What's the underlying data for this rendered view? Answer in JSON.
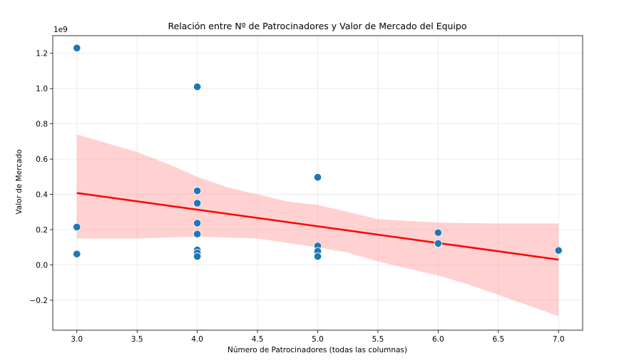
{
  "chart_data": {
    "type": "scatter",
    "title": "Relación entre Nº de Patrocinadores y Valor de Mercado del Equipo",
    "xlabel": "Número de Patrocinadores (todas las columnas)",
    "ylabel": "Valor de Mercado",
    "y_offset_label": "1e9",
    "xlim": [
      2.8,
      7.2
    ],
    "ylim": [
      -0.37,
      1.3
    ],
    "grid": true,
    "x_ticks": [
      3.0,
      3.5,
      4.0,
      4.5,
      5.0,
      5.5,
      6.0,
      6.5,
      7.0
    ],
    "x_tick_labels": [
      "3.0",
      "3.5",
      "4.0",
      "4.5",
      "5.0",
      "5.5",
      "6.0",
      "6.5",
      "7.0"
    ],
    "y_ticks": [
      -0.2,
      0.0,
      0.2,
      0.4,
      0.6,
      0.8,
      1.0,
      1.2
    ],
    "y_tick_labels": [
      "−0.2",
      "0.0",
      "0.2",
      "0.4",
      "0.6",
      "0.8",
      "1.0",
      "1.2"
    ],
    "series": [
      {
        "type": "scatter",
        "color": "#1f77b4",
        "points": [
          {
            "x": 3,
            "y": 1.23
          },
          {
            "x": 3,
            "y": 0.215
          },
          {
            "x": 3,
            "y": 0.062
          },
          {
            "x": 4,
            "y": 1.01
          },
          {
            "x": 4,
            "y": 0.42
          },
          {
            "x": 4,
            "y": 0.35
          },
          {
            "x": 4,
            "y": 0.237
          },
          {
            "x": 4,
            "y": 0.175
          },
          {
            "x": 4,
            "y": 0.085
          },
          {
            "x": 4,
            "y": 0.068
          },
          {
            "x": 4,
            "y": 0.048
          },
          {
            "x": 5,
            "y": 0.497
          },
          {
            "x": 5,
            "y": 0.108
          },
          {
            "x": 5,
            "y": 0.078
          },
          {
            "x": 5,
            "y": 0.048
          },
          {
            "x": 6,
            "y": 0.183
          },
          {
            "x": 6,
            "y": 0.122
          },
          {
            "x": 7,
            "y": 0.082
          }
        ]
      },
      {
        "type": "line",
        "color": "#ff0000",
        "points": [
          {
            "x": 3,
            "y": 0.408
          },
          {
            "x": 7,
            "y": 0.03
          }
        ]
      },
      {
        "type": "band",
        "color": "#ff9999",
        "upper": [
          {
            "x": 3.0,
            "y": 0.74
          },
          {
            "x": 3.2,
            "y": 0.7
          },
          {
            "x": 3.5,
            "y": 0.64
          },
          {
            "x": 3.8,
            "y": 0.56
          },
          {
            "x": 4.0,
            "y": 0.5
          },
          {
            "x": 4.25,
            "y": 0.44
          },
          {
            "x": 4.5,
            "y": 0.4
          },
          {
            "x": 4.75,
            "y": 0.36
          },
          {
            "x": 5.0,
            "y": 0.34
          },
          {
            "x": 5.25,
            "y": 0.3
          },
          {
            "x": 5.5,
            "y": 0.26
          },
          {
            "x": 6.0,
            "y": 0.24
          },
          {
            "x": 6.5,
            "y": 0.235
          },
          {
            "x": 7.0,
            "y": 0.235
          }
        ],
        "lower": [
          {
            "x": 3.0,
            "y": 0.15
          },
          {
            "x": 3.5,
            "y": 0.15
          },
          {
            "x": 4.0,
            "y": 0.16
          },
          {
            "x": 4.5,
            "y": 0.15
          },
          {
            "x": 5.0,
            "y": 0.1
          },
          {
            "x": 5.25,
            "y": 0.07
          },
          {
            "x": 5.5,
            "y": 0.02
          },
          {
            "x": 5.75,
            "y": -0.02
          },
          {
            "x": 6.0,
            "y": -0.06
          },
          {
            "x": 6.25,
            "y": -0.11
          },
          {
            "x": 6.5,
            "y": -0.17
          },
          {
            "x": 6.75,
            "y": -0.23
          },
          {
            "x": 7.0,
            "y": -0.29
          }
        ]
      }
    ]
  }
}
